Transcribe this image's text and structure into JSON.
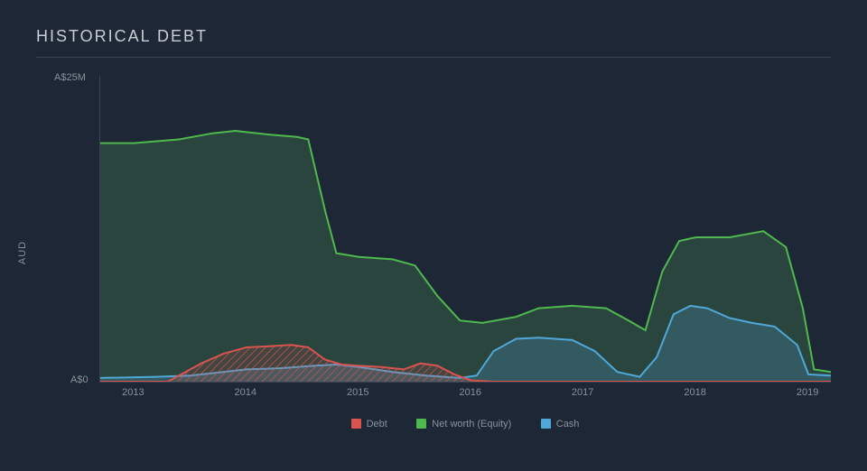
{
  "title": "HISTORICAL DEBT",
  "ylabel": "AUD",
  "yticks": [
    {
      "value": 0,
      "label": "A$0"
    },
    {
      "value": 25,
      "label": "A$25M"
    }
  ],
  "xticks": [
    "2013",
    "2014",
    "2015",
    "2016",
    "2017",
    "2018",
    "2019"
  ],
  "x_range": [
    2012.7,
    2019.2
  ],
  "y_range": [
    0,
    25
  ],
  "colors": {
    "background": "#1e2735",
    "grid": "#3a4452",
    "text": "#8a919c",
    "title_text": "#c8cdd4",
    "debt_stroke": "#d9534f",
    "debt_fill": "#d9534f",
    "equity_stroke": "#4fb94f",
    "equity_fill": "#3a6b4a",
    "cash_stroke": "#4fa8d8",
    "cash_fill": "#3a6b7d"
  },
  "legend": [
    {
      "label": "Debt",
      "color": "#d9534f"
    },
    {
      "label": "Net worth (Equity)",
      "color": "#4fb94f"
    },
    {
      "label": "Cash",
      "color": "#4fa8d8"
    }
  ],
  "chart": {
    "type": "area",
    "series": {
      "equity": [
        [
          2012.7,
          19.5
        ],
        [
          2013.0,
          19.5
        ],
        [
          2013.4,
          19.8
        ],
        [
          2013.7,
          20.3
        ],
        [
          2013.9,
          20.5
        ],
        [
          2014.2,
          20.2
        ],
        [
          2014.45,
          20.0
        ],
        [
          2014.55,
          19.8
        ],
        [
          2014.7,
          14.0
        ],
        [
          2014.8,
          10.5
        ],
        [
          2015.0,
          10.2
        ],
        [
          2015.3,
          10.0
        ],
        [
          2015.5,
          9.5
        ],
        [
          2015.7,
          7.0
        ],
        [
          2015.9,
          5.0
        ],
        [
          2016.1,
          4.8
        ],
        [
          2016.4,
          5.3
        ],
        [
          2016.6,
          6.0
        ],
        [
          2016.9,
          6.2
        ],
        [
          2017.2,
          6.0
        ],
        [
          2017.4,
          5.0
        ],
        [
          2017.55,
          4.2
        ],
        [
          2017.7,
          9.0
        ],
        [
          2017.85,
          11.5
        ],
        [
          2018.0,
          11.8
        ],
        [
          2018.3,
          11.8
        ],
        [
          2018.6,
          12.3
        ],
        [
          2018.8,
          11.0
        ],
        [
          2018.95,
          6.0
        ],
        [
          2019.05,
          1.0
        ],
        [
          2019.2,
          0.8
        ]
      ],
      "cash": [
        [
          2012.7,
          0.3
        ],
        [
          2013.2,
          0.4
        ],
        [
          2013.5,
          0.5
        ],
        [
          2013.8,
          0.8
        ],
        [
          2014.0,
          1.0
        ],
        [
          2014.3,
          1.1
        ],
        [
          2014.6,
          1.3
        ],
        [
          2014.8,
          1.4
        ],
        [
          2015.0,
          1.2
        ],
        [
          2015.3,
          0.8
        ],
        [
          2015.6,
          0.5
        ],
        [
          2015.9,
          0.3
        ],
        [
          2016.05,
          0.5
        ],
        [
          2016.2,
          2.5
        ],
        [
          2016.4,
          3.5
        ],
        [
          2016.6,
          3.6
        ],
        [
          2016.9,
          3.4
        ],
        [
          2017.1,
          2.5
        ],
        [
          2017.3,
          0.8
        ],
        [
          2017.5,
          0.4
        ],
        [
          2017.65,
          2.0
        ],
        [
          2017.8,
          5.5
        ],
        [
          2017.95,
          6.2
        ],
        [
          2018.1,
          6.0
        ],
        [
          2018.3,
          5.2
        ],
        [
          2018.5,
          4.8
        ],
        [
          2018.7,
          4.5
        ],
        [
          2018.9,
          3.0
        ],
        [
          2019.0,
          0.6
        ],
        [
          2019.2,
          0.5
        ]
      ],
      "debt": [
        [
          2012.7,
          0
        ],
        [
          2013.3,
          0
        ],
        [
          2013.4,
          0.5
        ],
        [
          2013.6,
          1.5
        ],
        [
          2013.8,
          2.3
        ],
        [
          2014.0,
          2.8
        ],
        [
          2014.2,
          2.9
        ],
        [
          2014.4,
          3.0
        ],
        [
          2014.55,
          2.8
        ],
        [
          2014.7,
          1.8
        ],
        [
          2014.85,
          1.4
        ],
        [
          2015.0,
          1.3
        ],
        [
          2015.2,
          1.2
        ],
        [
          2015.4,
          1.0
        ],
        [
          2015.55,
          1.5
        ],
        [
          2015.7,
          1.3
        ],
        [
          2015.85,
          0.6
        ],
        [
          2016.0,
          0.1
        ],
        [
          2016.2,
          0
        ],
        [
          2019.2,
          0
        ]
      ]
    },
    "line_width": 2,
    "fill_opacity": 0.45,
    "debt_hatch": true
  },
  "title_fontsize": 18,
  "label_fontsize": 11
}
